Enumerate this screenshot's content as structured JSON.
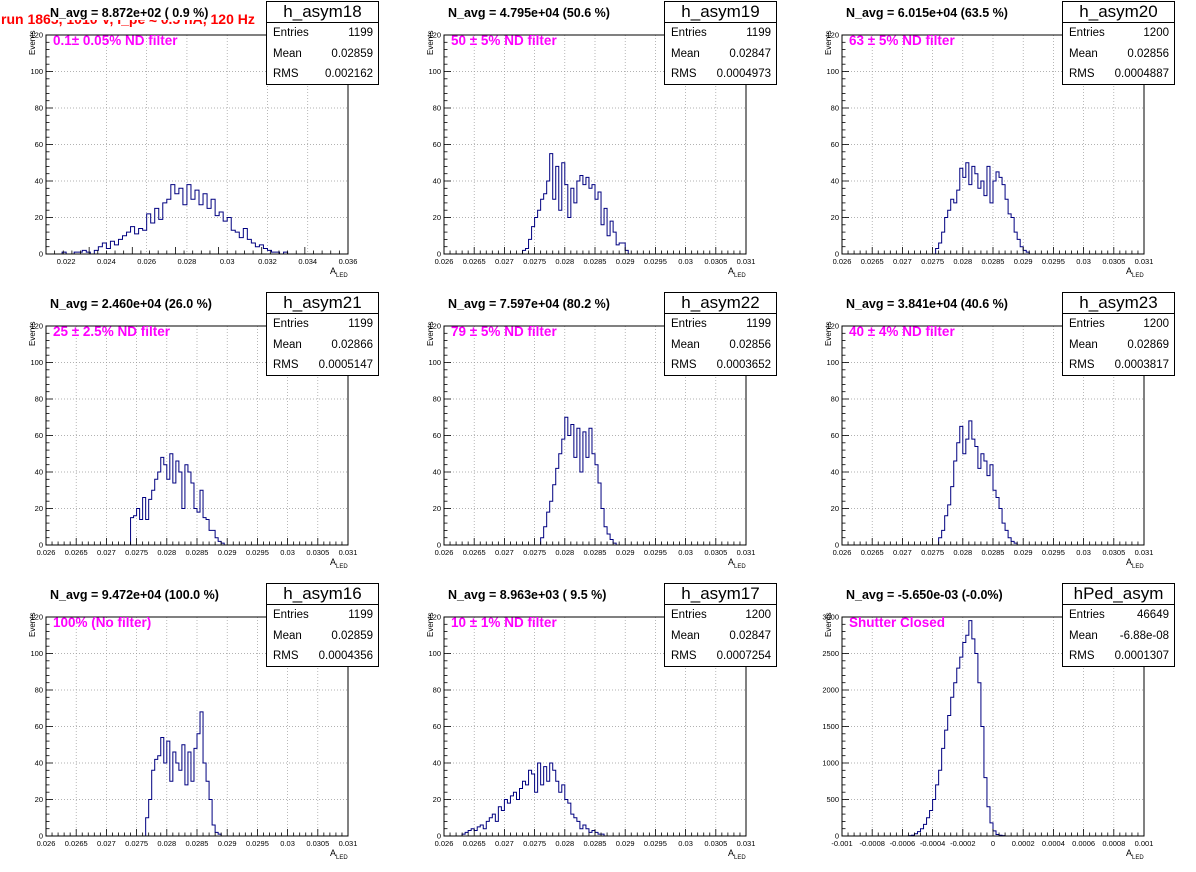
{
  "title": "run 1865,  1010 V, I_pe ≈ 0.5 nA, 120 Hz",
  "style": {
    "line_color": "#000080",
    "title_color": "#ff0000",
    "annotation_color": "#ff00ff"
  },
  "axis_labels": {
    "y": "Events",
    "x_main": "A",
    "x_sub": "LED"
  },
  "stat_labels": {
    "entries": "Entries",
    "mean": "Mean",
    "rms": "RMS"
  },
  "panels": [
    {
      "name": "h_asym18",
      "navg": "N_avg = 8.872e+02 ( 0.9 %)",
      "filter": "0.1± 0.05% ND filter",
      "entries": "1199",
      "mean": "0.02859",
      "rms": "0.002162"
    },
    {
      "name": "h_asym19",
      "navg": "N_avg = 4.795e+04 (50.6 %)",
      "filter": "50 ± 5% ND filter",
      "entries": "1199",
      "mean": "0.02847",
      "rms": "0.0004973"
    },
    {
      "name": "h_asym20",
      "navg": "N_avg = 6.015e+04 (63.5 %)",
      "filter": "63 ± 5% ND filter",
      "entries": "1200",
      "mean": "0.02856",
      "rms": "0.0004887"
    },
    {
      "name": "h_asym21",
      "navg": "N_avg = 2.460e+04 (26.0 %)",
      "filter": "25 ± 2.5% ND filter",
      "entries": "1199",
      "mean": "0.02866",
      "rms": "0.0005147"
    },
    {
      "name": "h_asym22",
      "navg": "N_avg = 7.597e+04 (80.2 %)",
      "filter": "79 ± 5% ND filter",
      "entries": "1199",
      "mean": "0.02856",
      "rms": "0.0003652"
    },
    {
      "name": "h_asym23",
      "navg": "N_avg = 3.841e+04 (40.6 %)",
      "filter": "40 ± 4% ND filter",
      "entries": "1200",
      "mean": "0.02869",
      "rms": "0.0003817"
    },
    {
      "name": "h_asym16",
      "navg": "N_avg = 9.472e+04 (100.0 %)",
      "filter": "100% (No filter)",
      "entries": "1199",
      "mean": "0.02859",
      "rms": "0.0004356"
    },
    {
      "name": "h_asym17",
      "navg": "N_avg = 8.963e+03 ( 9.5 %)",
      "filter": "10 ± 1% ND filter",
      "entries": "1200",
      "mean": "0.02847",
      "rms": "0.0007254"
    },
    {
      "name": "hPed_asym",
      "navg": "N_avg = -5.650e-03 (-0.0%)",
      "filter": "Shutter Closed",
      "entries": "46649",
      "mean": "-6.88e-08",
      "rms": "0.0001307"
    }
  ],
  "chart_data": [
    {
      "type": "histogram",
      "name": "h_asym18",
      "grid": true,
      "xlim": [
        0.021,
        0.036
      ],
      "ylim": [
        0,
        120
      ],
      "xticks": [
        "0.022",
        "0.024",
        "0.026",
        "0.028",
        "0.03",
        "0.032",
        "0.034",
        "0.036"
      ],
      "yticks": [
        "0",
        "20",
        "40",
        "60",
        "80",
        "100",
        "120"
      ],
      "bin_width": 0.0002,
      "x_start": 0.0218,
      "values": [
        1,
        0,
        0,
        1,
        1,
        2,
        1,
        0,
        2,
        4,
        6,
        3,
        7,
        5,
        8,
        10,
        12,
        15,
        11,
        14,
        13,
        22,
        17,
        25,
        19,
        28,
        30,
        38,
        33,
        36,
        27,
        38,
        30,
        35,
        27,
        33,
        25,
        30,
        21,
        23,
        18,
        20,
        13,
        12,
        9,
        14,
        8,
        6,
        4,
        5,
        3,
        2,
        1,
        1,
        0,
        1
      ]
    },
    {
      "type": "histogram",
      "name": "h_asym19",
      "grid": true,
      "xlim": [
        0.026,
        0.031
      ],
      "ylim": [
        0,
        120
      ],
      "xticks": [
        "0.026",
        "0.0265",
        "0.027",
        "0.0275",
        "0.028",
        "0.0285",
        "0.029",
        "0.0295",
        "0.03",
        "0.0305",
        "0.031"
      ],
      "yticks": [
        "0",
        "20",
        "40",
        "60",
        "80",
        "100",
        "120"
      ],
      "bin_width": 5e-05,
      "x_start": 0.0273,
      "values": [
        2,
        3,
        8,
        15,
        20,
        24,
        30,
        33,
        40,
        55,
        30,
        48,
        24,
        50,
        38,
        20,
        36,
        28,
        40,
        43,
        38,
        42,
        36,
        38,
        30,
        34,
        16,
        25,
        10,
        18,
        12,
        5,
        6,
        6,
        2
      ]
    },
    {
      "type": "histogram",
      "name": "h_asym20",
      "grid": true,
      "xlim": [
        0.026,
        0.031
      ],
      "ylim": [
        0,
        120
      ],
      "xticks": [
        "0.026",
        "0.0265",
        "0.027",
        "0.0275",
        "0.028",
        "0.0285",
        "0.029",
        "0.0295",
        "0.03",
        "0.0305",
        "0.031"
      ],
      "yticks": [
        "0",
        "20",
        "40",
        "60",
        "80",
        "100",
        "120"
      ],
      "bin_width": 5e-05,
      "x_start": 0.02755,
      "values": [
        3,
        6,
        12,
        20,
        24,
        30,
        28,
        35,
        47,
        42,
        50,
        38,
        48,
        44,
        36,
        40,
        32,
        48,
        28,
        40,
        45,
        42,
        38,
        30,
        22,
        20,
        12,
        8,
        4,
        2,
        1
      ]
    },
    {
      "type": "histogram",
      "name": "h_asym21",
      "grid": true,
      "xlim": [
        0.026,
        0.031
      ],
      "ylim": [
        0,
        120
      ],
      "xticks": [
        "0.026",
        "0.0265",
        "0.027",
        "0.0275",
        "0.028",
        "0.0285",
        "0.029",
        "0.0295",
        "0.03",
        "0.0305",
        "0.031"
      ],
      "yticks": [
        "0",
        "20",
        "40",
        "60",
        "80",
        "100",
        "120"
      ],
      "bin_width": 5e-05,
      "x_start": 0.0274,
      "values": [
        15,
        16,
        20,
        14,
        26,
        14,
        25,
        30,
        36,
        40,
        48,
        44,
        36,
        50,
        34,
        46,
        40,
        20,
        44,
        40,
        34,
        20,
        18,
        30,
        15,
        14,
        8,
        8,
        4,
        2,
        1
      ]
    },
    {
      "type": "histogram",
      "name": "h_asym22",
      "grid": true,
      "xlim": [
        0.026,
        0.031
      ],
      "ylim": [
        0,
        120
      ],
      "xticks": [
        "0.026",
        "0.0265",
        "0.027",
        "0.0275",
        "0.028",
        "0.0285",
        "0.029",
        "0.0295",
        "0.03",
        "0.0305",
        "0.031"
      ],
      "yticks": [
        "0",
        "20",
        "40",
        "60",
        "80",
        "100",
        "120"
      ],
      "bin_width": 5e-05,
      "x_start": 0.0276,
      "values": [
        4,
        10,
        18,
        24,
        33,
        42,
        50,
        58,
        70,
        60,
        66,
        48,
        64,
        40,
        62,
        48,
        64,
        50,
        44,
        34,
        20,
        10,
        6,
        3,
        1
      ]
    },
    {
      "type": "histogram",
      "name": "h_asym23",
      "grid": true,
      "xlim": [
        0.026,
        0.031
      ],
      "ylim": [
        0,
        120
      ],
      "xticks": [
        "0.026",
        "0.0265",
        "0.027",
        "0.0275",
        "0.028",
        "0.0285",
        "0.029",
        "0.0295",
        "0.03",
        "0.0305",
        "0.031"
      ],
      "yticks": [
        "0",
        "20",
        "40",
        "60",
        "80",
        "100",
        "120"
      ],
      "bin_width": 5e-05,
      "x_start": 0.0276,
      "values": [
        4,
        8,
        16,
        22,
        32,
        46,
        56,
        65,
        50,
        58,
        68,
        58,
        54,
        42,
        50,
        46,
        38,
        44,
        30,
        26,
        20,
        12,
        8,
        4,
        2,
        1
      ]
    },
    {
      "type": "histogram",
      "name": "h_asym16",
      "grid": true,
      "xlim": [
        0.026,
        0.031
      ],
      "ylim": [
        0,
        120
      ],
      "xticks": [
        "0.026",
        "0.0265",
        "0.027",
        "0.0275",
        "0.028",
        "0.0285",
        "0.029",
        "0.0295",
        "0.03",
        "0.0305",
        "0.031"
      ],
      "yticks": [
        "0",
        "20",
        "40",
        "60",
        "80",
        "100",
        "120"
      ],
      "bin_width": 5e-05,
      "x_start": 0.02765,
      "values": [
        10,
        20,
        36,
        42,
        44,
        54,
        40,
        52,
        30,
        46,
        40,
        36,
        50,
        28,
        46,
        30,
        48,
        56,
        68,
        40,
        30,
        20,
        6,
        2,
        1
      ]
    },
    {
      "type": "histogram",
      "name": "h_asym17",
      "grid": true,
      "xlim": [
        0.026,
        0.031
      ],
      "ylim": [
        0,
        120
      ],
      "xticks": [
        "0.026",
        "0.0265",
        "0.027",
        "0.0275",
        "0.028",
        "0.0285",
        "0.029",
        "0.0295",
        "0.03",
        "0.0305",
        "0.031"
      ],
      "yticks": [
        "0",
        "20",
        "40",
        "60",
        "80",
        "100",
        "120"
      ],
      "bin_width": 5e-05,
      "x_start": 0.0263,
      "values": [
        1,
        2,
        3,
        4,
        3,
        5,
        6,
        4,
        8,
        10,
        12,
        8,
        16,
        14,
        20,
        18,
        22,
        24,
        20,
        26,
        30,
        28,
        36,
        34,
        24,
        40,
        28,
        38,
        30,
        40,
        36,
        30,
        24,
        28,
        20,
        18,
        12,
        10,
        8,
        4,
        6,
        4,
        2,
        3,
        2,
        1,
        1
      ]
    },
    {
      "type": "histogram",
      "name": "hPed_asym",
      "grid": true,
      "xlim": [
        -0.001,
        0.001
      ],
      "ylim": [
        0,
        3000
      ],
      "xticks": [
        "-0.001",
        "-0.0008",
        "-0.0006",
        "-0.0004",
        "-0.0002",
        "0",
        "0.0002",
        "0.0004",
        "0.0006",
        "0.0008",
        "0.001"
      ],
      "yticks": [
        "0",
        "500",
        "1000",
        "1500",
        "2000",
        "2500",
        "3000"
      ],
      "bin_width": 2e-05,
      "x_start": -0.00056,
      "values": [
        5,
        10,
        30,
        60,
        100,
        160,
        250,
        350,
        500,
        700,
        900,
        1200,
        1450,
        1650,
        1900,
        2100,
        2300,
        2450,
        2650,
        2750,
        2950,
        2700,
        2500,
        2100,
        1500,
        800,
        400,
        180,
        70,
        20,
        10,
        5
      ]
    }
  ]
}
